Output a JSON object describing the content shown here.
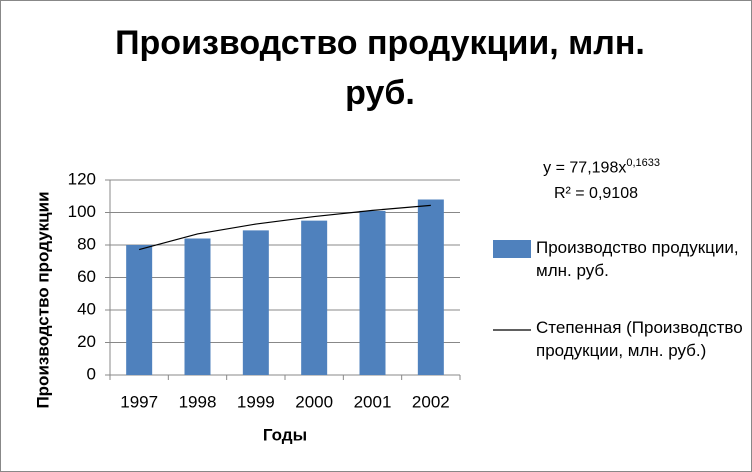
{
  "chart_data": {
    "type": "bar",
    "title": "Производство продукции, млн. руб.",
    "x_label": "Годы",
    "y_label": "Производство продукции",
    "categories": [
      "1997",
      "1998",
      "1999",
      "2000",
      "2001",
      "2002"
    ],
    "series": [
      {
        "name": "Производство продукции, млн. руб.",
        "type": "bar",
        "color": "#4f81bd",
        "values": [
          80,
          84,
          89,
          95,
          101,
          108
        ]
      },
      {
        "name": "Степенная (Производство продукции, млн. руб.)",
        "type": "line",
        "color": "#000000",
        "values": [
          77.2,
          86.8,
          92.9,
          97.5,
          101.3,
          104.4
        ]
      }
    ],
    "trendline_equation": "y = 77,198x",
    "trendline_exponent": "0,1633",
    "trendline_r_squared": "R² = 0,9108",
    "ylim": [
      0,
      120
    ],
    "yticks": [
      0,
      20,
      40,
      60,
      80,
      100,
      120
    ],
    "grid": true,
    "legend": "right"
  }
}
